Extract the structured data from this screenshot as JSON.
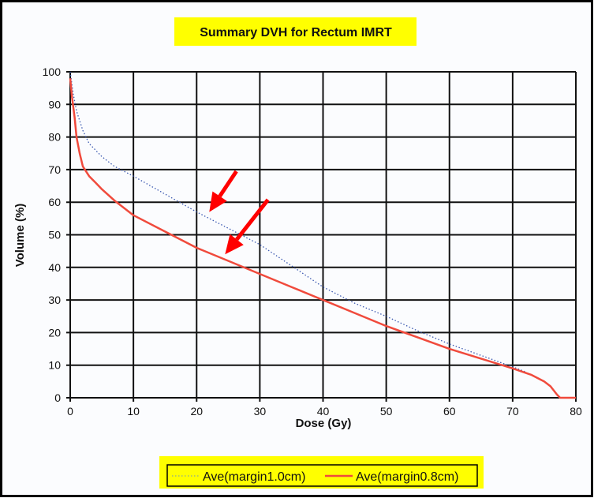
{
  "chart_data": {
    "type": "line",
    "title": "Summary DVH for Rectum IMRT",
    "xlabel": "Dose (Gy)",
    "ylabel": "Volume (%)",
    "xlim": [
      0,
      80
    ],
    "ylim": [
      0,
      100
    ],
    "xticks": [
      0,
      10,
      20,
      30,
      40,
      50,
      60,
      70,
      80
    ],
    "yticks": [
      0,
      10,
      20,
      30,
      40,
      50,
      60,
      70,
      80,
      90,
      100
    ],
    "grid": true,
    "legend_position": "bottom",
    "series": [
      {
        "name": "Ave(margin1.0cm)",
        "color": "#3a58b0",
        "style": "dotted",
        "x": [
          0,
          0.5,
          1,
          2,
          3,
          5,
          7,
          10,
          15,
          20,
          25,
          30,
          35,
          40,
          45,
          50,
          55,
          60,
          65,
          70,
          72
        ],
        "y": [
          100,
          93,
          88,
          82,
          78,
          74,
          71,
          68,
          62.5,
          57,
          52,
          47,
          40.5,
          34,
          29,
          25,
          20.5,
          16.5,
          13,
          9.5,
          8
        ]
      },
      {
        "name": "Ave(margin0.8cm)",
        "color": "#f04a3c",
        "style": "solid",
        "x": [
          0,
          0.3,
          0.7,
          1,
          1.5,
          2,
          3,
          4,
          5,
          7,
          10,
          15,
          20,
          25,
          30,
          35,
          40,
          45,
          50,
          55,
          60,
          65,
          70,
          73,
          75,
          76,
          77,
          77.5,
          80
        ],
        "y": [
          98,
          92,
          86,
          80,
          75,
          71,
          68,
          66,
          64,
          60.5,
          56,
          51,
          46,
          42,
          38,
          34,
          30,
          26,
          22,
          18.5,
          15,
          12,
          9,
          7,
          5,
          3.5,
          1,
          0,
          0
        ]
      }
    ],
    "annotations": [
      {
        "type": "arrow",
        "color": "#ff0000",
        "points_to": "Ave(margin1.0cm)",
        "at": [
          22,
          57
        ]
      },
      {
        "type": "arrow",
        "color": "#ff0000",
        "points_to": "Ave(margin0.8cm)",
        "at": [
          24.5,
          44
        ]
      }
    ]
  }
}
